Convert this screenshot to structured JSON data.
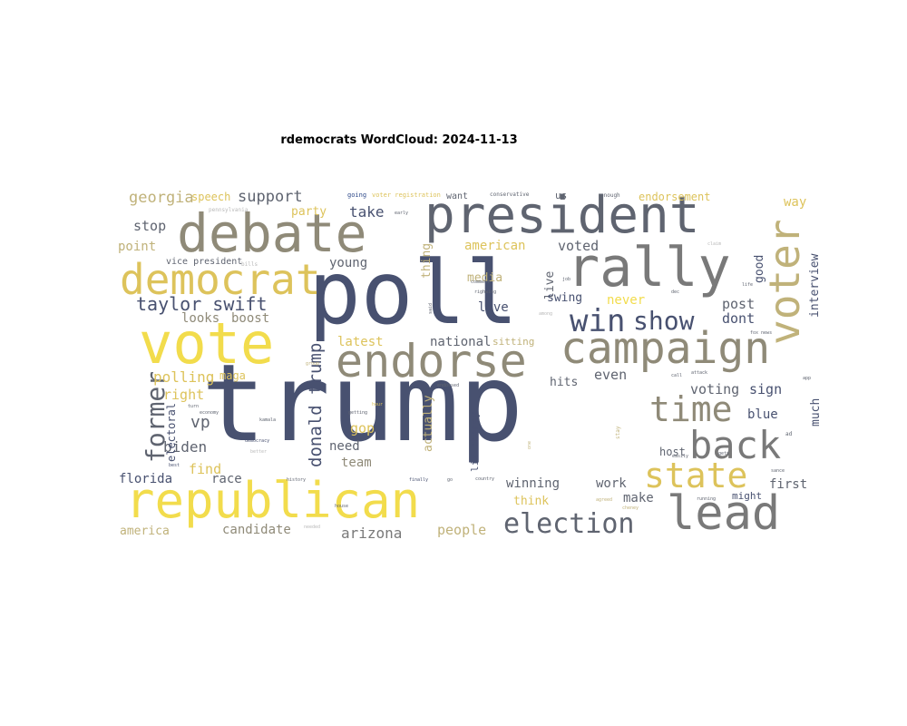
{
  "title": "rdemocrats WordCloud: 2024-11-13",
  "palette": {
    "navy": "#485170",
    "slate": "#5f6470",
    "gray": "#797979",
    "olive": "#8f8a78",
    "khaki": "#c0b27a",
    "gold": "#ddc35b",
    "yellow": "#f2dc4c",
    "blue": "#2f4a8a",
    "lightgray": "#b9b9b9"
  },
  "words": [
    {
      "text": "trump",
      "color": "navy"
    },
    {
      "text": "poll",
      "color": "navy"
    },
    {
      "text": "debate",
      "color": "olive"
    },
    {
      "text": "president",
      "color": "slate"
    },
    {
      "text": "republican",
      "color": "yellow"
    },
    {
      "text": "vote",
      "color": "yellow"
    },
    {
      "text": "rally",
      "color": "gray"
    },
    {
      "text": "campaign",
      "color": "olive"
    },
    {
      "text": "endorse",
      "color": "olive"
    },
    {
      "text": "democrat",
      "color": "gold"
    },
    {
      "text": "lead",
      "color": "gray"
    },
    {
      "text": "voter",
      "color": "khaki"
    },
    {
      "text": "election",
      "color": "slate"
    },
    {
      "text": "state",
      "color": "gold"
    },
    {
      "text": "back",
      "color": "gray"
    },
    {
      "text": "time",
      "color": "olive"
    },
    {
      "text": "win",
      "color": "navy"
    },
    {
      "text": "show",
      "color": "navy"
    },
    {
      "text": "former",
      "color": "slate"
    },
    {
      "text": "taylor swift",
      "color": "navy"
    },
    {
      "text": "donald trump",
      "color": "navy"
    },
    {
      "text": "georgia",
      "color": "khaki"
    },
    {
      "text": "speech",
      "color": "gold"
    },
    {
      "text": "support",
      "color": "slate"
    },
    {
      "text": "party",
      "color": "gold"
    },
    {
      "text": "take",
      "color": "navy"
    },
    {
      "text": "stop",
      "color": "slate"
    },
    {
      "text": "point",
      "color": "khaki"
    },
    {
      "text": "vice president",
      "color": "slate"
    },
    {
      "text": "looks",
      "color": "olive"
    },
    {
      "text": "boost",
      "color": "olive"
    },
    {
      "text": "young",
      "color": "slate"
    },
    {
      "text": "american",
      "color": "gold"
    },
    {
      "text": "voted",
      "color": "slate"
    },
    {
      "text": "media",
      "color": "khaki"
    },
    {
      "text": "live",
      "color": "slate"
    },
    {
      "text": "love",
      "color": "navy"
    },
    {
      "text": "swing",
      "color": "navy"
    },
    {
      "text": "never",
      "color": "yellow"
    },
    {
      "text": "post",
      "color": "slate"
    },
    {
      "text": "dont",
      "color": "navy"
    },
    {
      "text": "good",
      "color": "navy"
    },
    {
      "text": "interview",
      "color": "navy"
    },
    {
      "text": "way",
      "color": "gold"
    },
    {
      "text": "endorsement",
      "color": "gold"
    },
    {
      "text": "thing",
      "color": "khaki"
    },
    {
      "text": "latest",
      "color": "gold"
    },
    {
      "text": "national",
      "color": "slate"
    },
    {
      "text": "sitting",
      "color": "khaki"
    },
    {
      "text": "polling",
      "color": "gold"
    },
    {
      "text": "maga",
      "color": "gold"
    },
    {
      "text": "right",
      "color": "gold"
    },
    {
      "text": "vp",
      "color": "slate"
    },
    {
      "text": "biden",
      "color": "slate"
    },
    {
      "text": "electoral",
      "color": "navy"
    },
    {
      "text": "gop",
      "color": "gold"
    },
    {
      "text": "actually",
      "color": "khaki"
    },
    {
      "text": "liz cheney",
      "color": "navy"
    },
    {
      "text": "even",
      "color": "slate"
    },
    {
      "text": "hits",
      "color": "slate"
    },
    {
      "text": "voting",
      "color": "slate"
    },
    {
      "text": "sign",
      "color": "navy"
    },
    {
      "text": "blue",
      "color": "navy"
    },
    {
      "text": "much",
      "color": "navy"
    },
    {
      "text": "find",
      "color": "gold"
    },
    {
      "text": "need",
      "color": "slate"
    },
    {
      "text": "team",
      "color": "olive"
    },
    {
      "text": "florida",
      "color": "navy"
    },
    {
      "text": "race",
      "color": "slate"
    },
    {
      "text": "winning",
      "color": "slate"
    },
    {
      "text": "work",
      "color": "slate"
    },
    {
      "text": "make",
      "color": "slate"
    },
    {
      "text": "think",
      "color": "gold"
    },
    {
      "text": "host",
      "color": "slate"
    },
    {
      "text": "first",
      "color": "slate"
    },
    {
      "text": "might",
      "color": "navy"
    },
    {
      "text": "america",
      "color": "khaki"
    },
    {
      "text": "candidate",
      "color": "olive"
    },
    {
      "text": "arizona",
      "color": "gray"
    },
    {
      "text": "people",
      "color": "khaki"
    },
    {
      "text": "want",
      "color": "slate"
    },
    {
      "text": "us",
      "color": "slate"
    },
    {
      "text": "going",
      "color": "blue"
    },
    {
      "text": "voter registration",
      "color": "gold"
    },
    {
      "text": "conservative",
      "color": "slate"
    },
    {
      "text": "enough",
      "color": "slate"
    },
    {
      "text": "pennsylvania",
      "color": "lightgray"
    },
    {
      "text": "bills",
      "color": "lightgray"
    },
    {
      "text": "early",
      "color": "slate"
    },
    {
      "text": "claim",
      "color": "lightgray"
    },
    {
      "text": "life",
      "color": "slate"
    },
    {
      "text": "job",
      "color": "slate"
    },
    {
      "text": "righwing",
      "color": "slate"
    },
    {
      "text": "comment",
      "color": "slate"
    },
    {
      "text": "among",
      "color": "lightgray"
    },
    {
      "text": "dec",
      "color": "slate"
    },
    {
      "text": "fox news",
      "color": "slate"
    },
    {
      "text": "call",
      "color": "slate"
    },
    {
      "text": "attack",
      "color": "slate"
    },
    {
      "text": "endorsed",
      "color": "slate"
    },
    {
      "text": "turn",
      "color": "slate"
    },
    {
      "text": "economy",
      "color": "slate"
    },
    {
      "text": "kamala",
      "color": "slate"
    },
    {
      "text": "hour",
      "color": "gold"
    },
    {
      "text": "democracy",
      "color": "navy"
    },
    {
      "text": "better",
      "color": "lightgray"
    },
    {
      "text": "getting",
      "color": "slate"
    },
    {
      "text": "best",
      "color": "navy"
    },
    {
      "text": "history",
      "color": "slate"
    },
    {
      "text": "finally",
      "color": "navy"
    },
    {
      "text": "country",
      "color": "slate"
    },
    {
      "text": "agreed",
      "color": "khaki"
    },
    {
      "text": "running",
      "color": "slate"
    },
    {
      "text": "easily",
      "color": "slate"
    },
    {
      "text": "gets",
      "color": "slate"
    },
    {
      "text": "cheney",
      "color": "khaki"
    },
    {
      "text": "house",
      "color": "slate"
    },
    {
      "text": "needed",
      "color": "lightgray"
    },
    {
      "text": "group",
      "color": "khaki"
    },
    {
      "text": "ad",
      "color": "slate"
    },
    {
      "text": "sance",
      "color": "slate"
    },
    {
      "text": "app",
      "color": "slate"
    },
    {
      "text": "stay",
      "color": "khaki"
    },
    {
      "text": "one",
      "color": "khaki"
    },
    {
      "text": "said",
      "color": "slate"
    },
    {
      "text": "go",
      "color": "slate"
    }
  ]
}
